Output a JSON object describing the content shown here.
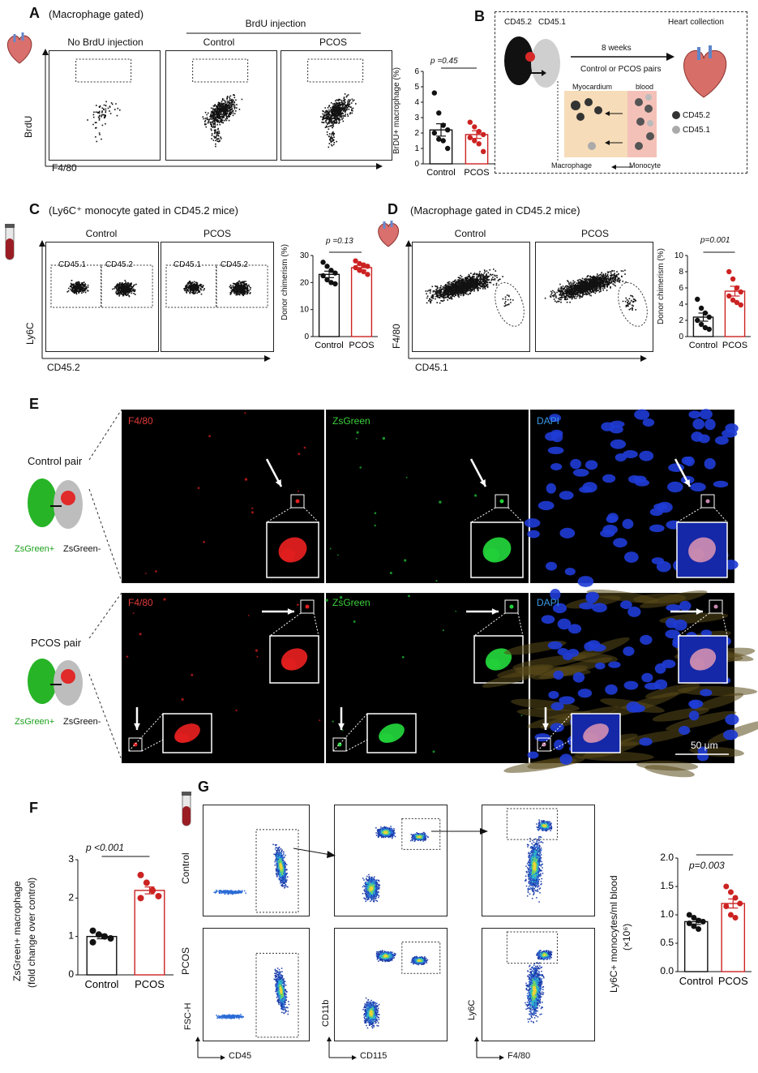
{
  "panel_a": {
    "letter": "A",
    "subtitle": "(Macrophage gated)",
    "brdu_injection": "BrdU injection",
    "col_no": "No BrdU injection",
    "col_control": "Control",
    "col_pcos": "PCOS",
    "ylabel": "BrdU",
    "xlabel": "F4/80",
    "bar_ylabel": "BrDU+ macrophage (%)",
    "pvalue": "p =0.45"
  },
  "panel_b": {
    "letter": "B",
    "cd452": "CD45.2",
    "cd451": "CD45.1",
    "weeks": "8 weeks",
    "pairs": "Control or PCOS pairs",
    "heart": "Heart collection",
    "myocardium": "Myocardium",
    "blood": "blood",
    "legend_452": "CD45.2",
    "legend_451": "CD45.1",
    "macrophage": "Macrophage",
    "monocyte": "Monocyte"
  },
  "panel_c": {
    "letter": "C",
    "subtitle": "(Ly6C⁺ monocyte gated in CD45.2 mice)",
    "col_control": "Control",
    "col_pcos": "PCOS",
    "gate1": "CD45.1",
    "gate2": "CD45.2",
    "gate3": "CD45.1",
    "gate4": "CD45.2",
    "ylabel": "Ly6C",
    "xlabel": "CD45.2",
    "bar_ylabel": "Donor chimerism (%)",
    "pvalue": "p =0.13"
  },
  "panel_d": {
    "letter": "D",
    "subtitle": "(Macrophage gated in CD45.2 mice)",
    "col_control": "Control",
    "col_pcos": "PCOS",
    "ylabel": "F4/80",
    "xlabel": "CD45.1",
    "bar_ylabel": "Donor chimerism (%)",
    "pvalue": "p=0.001"
  },
  "panel_e": {
    "letter": "E",
    "control_pair": "Control pair",
    "pcos_pair": "PCOS pair",
    "zs_pos": "ZsGreen+",
    "zs_neg": "ZsGreen-",
    "zs_pos2": "ZsGreen+",
    "zs_neg2": "ZsGreen-",
    "ch_f480": "F4/80",
    "ch_zs": "ZsGreen",
    "ch_dapi": "DAPI",
    "ch_f480b": "F4/80",
    "ch_zsb": "ZsGreen",
    "ch_dapib": "DAPI",
    "scale": "50 μm"
  },
  "panel_f": {
    "letter": "F",
    "ylabel1": "ZsGreen+ macrophage",
    "ylabel2": "(fold change over control)",
    "pvalue": "p <0.001"
  },
  "panel_g": {
    "letter": "G",
    "row_control": "Control",
    "row_pcos": "PCOS",
    "x1": "CD45",
    "x2": "CD115",
    "x3": "F4/80",
    "y1": "FSC-H",
    "y2": "CD11b",
    "y3": "Ly6C",
    "bar_ylabel1": "Ly6C+ monocytes/ml blood",
    "bar_ylabel2": "(×10⁶)",
    "pvalue": "p=0.003"
  },
  "chart_data": [
    {
      "type": "bar",
      "id": "A",
      "categories": [
        "Control",
        "PCOS"
      ],
      "values": [
        2.2,
        1.9
      ],
      "errors": [
        0.4,
        0.25
      ],
      "points": [
        [
          4.6,
          3.3,
          2.5,
          2.2,
          2.0,
          1.6,
          1.5,
          1.0
        ],
        [
          2.7,
          2.4,
          2.1,
          1.9,
          1.7,
          1.5,
          1.3,
          0.8
        ]
      ],
      "colors": [
        "#111111",
        "#cc2222"
      ],
      "ylabel": "BrDU+ macrophage (%)",
      "ylim": [
        0,
        6
      ],
      "yticks": [
        "0",
        "1",
        "2",
        "3",
        "4",
        "5",
        "6"
      ]
    },
    {
      "type": "bar",
      "id": "C",
      "categories": [
        "Control",
        "PCOS"
      ],
      "values": [
        23.0,
        25.5
      ],
      "errors": [
        1.2,
        0.9
      ],
      "points": [
        [
          27.5,
          26.0,
          24.5,
          23.5,
          22.5,
          21.0,
          20.0,
          19.5
        ],
        [
          28.0,
          27.0,
          26.5,
          26.0,
          25.5,
          24.5,
          24.0,
          23.0
        ]
      ],
      "colors": [
        "#111111",
        "#cc2222"
      ],
      "ylabel": "Donor chimerism (%)",
      "ylim": [
        0,
        30
      ],
      "yticks": [
        "0",
        "10",
        "20",
        "30"
      ]
    },
    {
      "type": "bar",
      "id": "D",
      "categories": [
        "Control",
        "PCOS"
      ],
      "values": [
        2.4,
        5.6
      ],
      "errors": [
        0.5,
        0.6
      ],
      "points": [
        [
          4.6,
          3.5,
          2.9,
          2.4,
          2.0,
          1.5,
          1.1,
          0.9
        ],
        [
          8.0,
          7.1,
          6.0,
          5.5,
          5.0,
          4.5,
          4.2,
          3.9
        ]
      ],
      "colors": [
        "#111111",
        "#cc2222"
      ],
      "ylabel": "Donor chimerism (%)",
      "ylim": [
        0,
        10
      ],
      "yticks": [
        "0",
        "2",
        "4",
        "6",
        "8",
        "10"
      ]
    },
    {
      "type": "bar",
      "id": "F",
      "categories": [
        "Control",
        "PCOS"
      ],
      "values": [
        1.0,
        2.2
      ],
      "errors": [
        0.06,
        0.09
      ],
      "points": [
        [
          1.15,
          1.05,
          1.0,
          0.95,
          0.85
        ],
        [
          2.6,
          2.4,
          2.2,
          2.05,
          2.0
        ]
      ],
      "colors": [
        "#111111",
        "#cc2222"
      ],
      "ylabel": "ZsGreen+ macrophage (fold change over control)",
      "ylim": [
        0,
        3
      ],
      "yticks": [
        "0",
        "1",
        "2",
        "3"
      ]
    },
    {
      "type": "bar",
      "id": "G",
      "categories": [
        "Control",
        "PCOS"
      ],
      "values": [
        0.88,
        1.2
      ],
      "errors": [
        0.05,
        0.08
      ],
      "points": [
        [
          1.0,
          0.95,
          0.9,
          0.88,
          0.85,
          0.8,
          0.75
        ],
        [
          1.5,
          1.4,
          1.3,
          1.2,
          1.15,
          1.0,
          0.95
        ]
      ],
      "colors": [
        "#111111",
        "#cc2222"
      ],
      "ylabel": "Ly6C+ monocytes/ml blood (×10⁶)",
      "ylim": [
        0,
        2.0
      ],
      "yticks": [
        "0.0",
        "0.5",
        "1.0",
        "1.5",
        "2.0"
      ]
    }
  ]
}
